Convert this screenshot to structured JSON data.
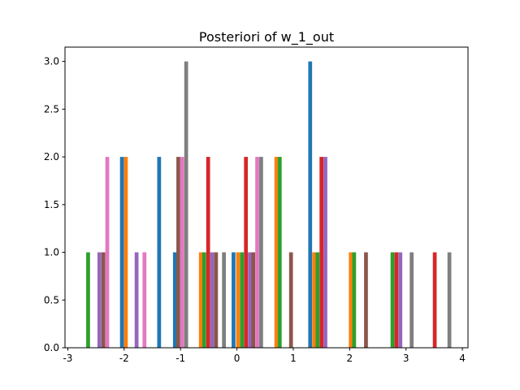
{
  "chart_data": {
    "type": "bar",
    "title": "Posteriori of w_1_out",
    "xlabel": "",
    "ylabel": "",
    "xlim": [
      -3.05,
      4.1
    ],
    "ylim": [
      0,
      3.15
    ],
    "x_ticks": [
      "-3",
      "-2",
      "-1",
      "0",
      "1",
      "2",
      "3",
      "4"
    ],
    "x_tick_values": [
      -3,
      -2,
      -1,
      0,
      1,
      2,
      3,
      4
    ],
    "y_ticks": [
      "0.0",
      "0.5",
      "1.0",
      "1.5",
      "2.0",
      "2.5",
      "3.0"
    ],
    "y_tick_values": [
      0,
      0.5,
      1.0,
      1.5,
      2.0,
      2.5,
      3.0
    ],
    "grid": false,
    "legend": "none",
    "bar_width": 0.068,
    "series": [
      {
        "color": "#1f77b4",
        "bars": [
          {
            "x": -2.04,
            "y": 2
          },
          {
            "x": -1.38,
            "y": 2
          },
          {
            "x": -1.1,
            "y": 1
          },
          {
            "x": -0.06,
            "y": 1
          },
          {
            "x": 1.3,
            "y": 3
          }
        ]
      },
      {
        "color": "#ff7f0e",
        "bars": [
          {
            "x": -1.97,
            "y": 2
          },
          {
            "x": -0.64,
            "y": 1
          },
          {
            "x": 0.02,
            "y": 1
          },
          {
            "x": 0.7,
            "y": 2
          },
          {
            "x": 1.37,
            "y": 1
          },
          {
            "x": 2.02,
            "y": 1
          }
        ]
      },
      {
        "color": "#2ca02c",
        "bars": [
          {
            "x": -2.64,
            "y": 1
          },
          {
            "x": -0.58,
            "y": 1
          },
          {
            "x": 0.09,
            "y": 1
          },
          {
            "x": 0.76,
            "y": 2
          },
          {
            "x": 1.43,
            "y": 1
          },
          {
            "x": 2.08,
            "y": 1
          },
          {
            "x": 2.76,
            "y": 1
          }
        ]
      },
      {
        "color": "#d62728",
        "bars": [
          {
            "x": -0.51,
            "y": 2
          },
          {
            "x": 0.16,
            "y": 2
          },
          {
            "x": 1.5,
            "y": 2
          },
          {
            "x": 2.83,
            "y": 1
          },
          {
            "x": 3.51,
            "y": 1
          }
        ]
      },
      {
        "color": "#9467bd",
        "bars": [
          {
            "x": -2.44,
            "y": 1
          },
          {
            "x": -1.78,
            "y": 1
          },
          {
            "x": -0.44,
            "y": 1
          },
          {
            "x": 0.23,
            "y": 1
          },
          {
            "x": 1.57,
            "y": 2
          },
          {
            "x": 2.9,
            "y": 1
          }
        ]
      },
      {
        "color": "#8c564b",
        "bars": [
          {
            "x": -2.37,
            "y": 1
          },
          {
            "x": -1.04,
            "y": 2
          },
          {
            "x": -0.37,
            "y": 1
          },
          {
            "x": 0.29,
            "y": 1
          },
          {
            "x": 0.96,
            "y": 1
          },
          {
            "x": 2.29,
            "y": 1
          }
        ]
      },
      {
        "color": "#e377c2",
        "bars": [
          {
            "x": -2.3,
            "y": 2
          },
          {
            "x": -1.64,
            "y": 1
          },
          {
            "x": -0.97,
            "y": 2
          },
          {
            "x": 0.36,
            "y": 2
          }
        ]
      },
      {
        "color": "#7f7f7f",
        "bars": [
          {
            "x": -0.9,
            "y": 3
          },
          {
            "x": -0.23,
            "y": 1
          },
          {
            "x": 0.43,
            "y": 2
          },
          {
            "x": 3.1,
            "y": 1
          },
          {
            "x": 3.77,
            "y": 1
          }
        ]
      }
    ]
  }
}
